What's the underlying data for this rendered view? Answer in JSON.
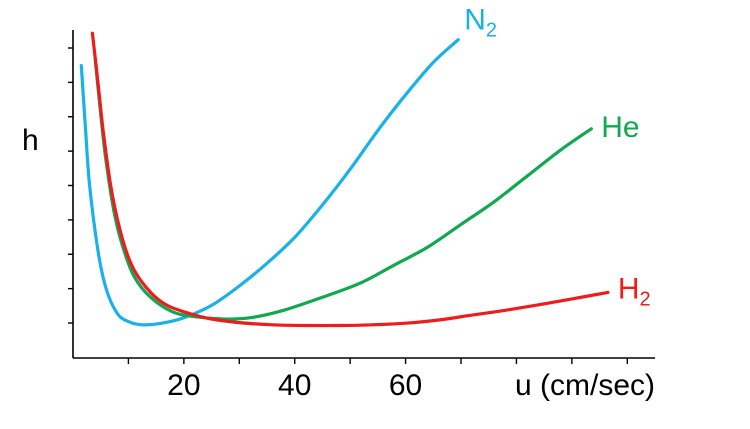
{
  "chart_data": {
    "type": "line",
    "title": "",
    "xlabel": "u (cm/sec)",
    "ylabel": "h",
    "xlim": [
      0,
      105
    ],
    "ylim": [
      0,
      10
    ],
    "x_ticks": [
      20,
      40,
      60
    ],
    "x_minor_ticks": [
      10,
      20,
      30,
      40,
      50,
      60,
      70,
      80,
      90,
      100
    ],
    "y_minor_tick_count": 9,
    "y_tick_labels": false,
    "grid": false,
    "legend": "inline labels at curve ends",
    "series": [
      {
        "name": "N2",
        "label_main": "N",
        "label_sub": "2",
        "color": "#1AB1E8",
        "points": [
          [
            1.5,
            8.9
          ],
          [
            2.2,
            7.1
          ],
          [
            3,
            5.2
          ],
          [
            4.5,
            3.2
          ],
          [
            6,
            2.0
          ],
          [
            8,
            1.25
          ],
          [
            10,
            1.0
          ],
          [
            12.5,
            0.9
          ],
          [
            16,
            0.95
          ],
          [
            20,
            1.12
          ],
          [
            25,
            1.5
          ],
          [
            30,
            2.1
          ],
          [
            35,
            2.8
          ],
          [
            40,
            3.6
          ],
          [
            45,
            4.6
          ],
          [
            50,
            5.7
          ],
          [
            55,
            6.9
          ],
          [
            60,
            8.0
          ],
          [
            65,
            9.0
          ],
          [
            69.5,
            9.7
          ]
        ]
      },
      {
        "name": "He",
        "label_main": "He",
        "label_sub": "",
        "color": "#12A84F",
        "points": [
          [
            4,
            9.1
          ],
          [
            5,
            7.4
          ],
          [
            6,
            5.9
          ],
          [
            7.5,
            4.3
          ],
          [
            9,
            3.3
          ],
          [
            11,
            2.4
          ],
          [
            14,
            1.75
          ],
          [
            18,
            1.3
          ],
          [
            22,
            1.15
          ],
          [
            27,
            1.08
          ],
          [
            32,
            1.12
          ],
          [
            38,
            1.35
          ],
          [
            45,
            1.75
          ],
          [
            52,
            2.2
          ],
          [
            58,
            2.75
          ],
          [
            64,
            3.3
          ],
          [
            70,
            4.0
          ],
          [
            76,
            4.7
          ],
          [
            82,
            5.5
          ],
          [
            88,
            6.3
          ],
          [
            93.5,
            6.95
          ]
        ]
      },
      {
        "name": "H2",
        "label_main": "H",
        "label_sub": "2",
        "color": "#EE1C1C",
        "points": [
          [
            3.5,
            9.9
          ],
          [
            4.5,
            8.4
          ],
          [
            5.5,
            6.8
          ],
          [
            7,
            5.0
          ],
          [
            9,
            3.5
          ],
          [
            11,
            2.6
          ],
          [
            14,
            1.9
          ],
          [
            17,
            1.5
          ],
          [
            21,
            1.25
          ],
          [
            25,
            1.08
          ],
          [
            30,
            0.97
          ],
          [
            36,
            0.9
          ],
          [
            42,
            0.88
          ],
          [
            48,
            0.88
          ],
          [
            54,
            0.9
          ],
          [
            60,
            0.95
          ],
          [
            66,
            1.05
          ],
          [
            72,
            1.2
          ],
          [
            78,
            1.35
          ],
          [
            84,
            1.52
          ],
          [
            90,
            1.7
          ],
          [
            96.5,
            1.9
          ]
        ]
      }
    ]
  }
}
